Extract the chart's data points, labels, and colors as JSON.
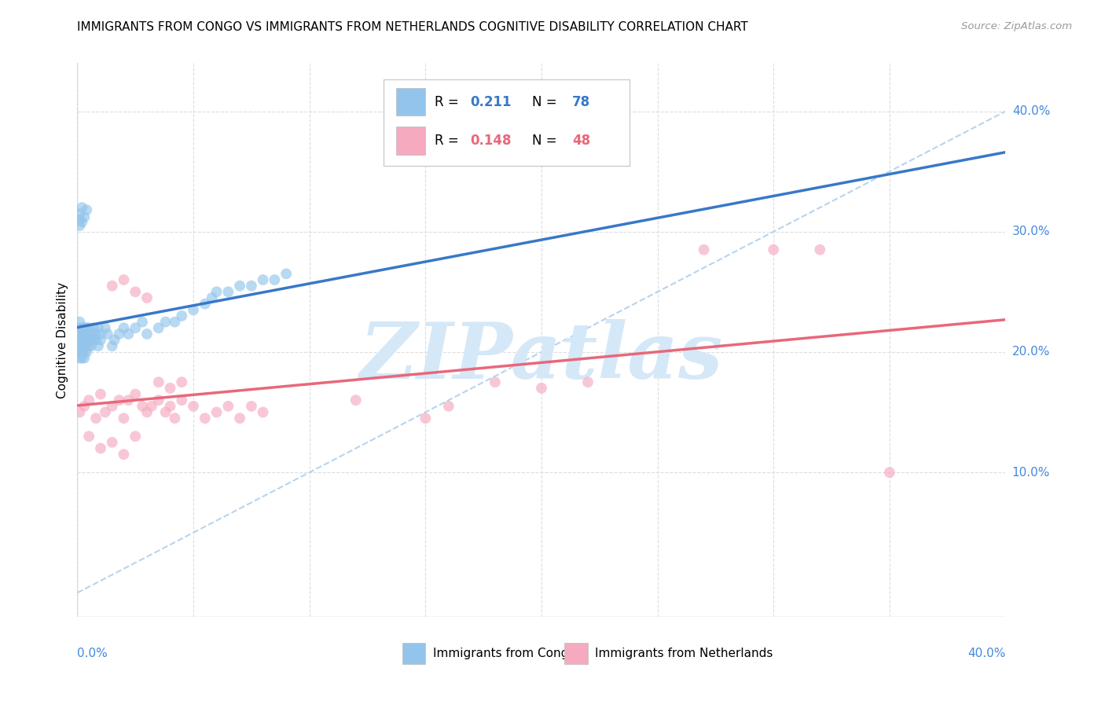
{
  "title": "IMMIGRANTS FROM CONGO VS IMMIGRANTS FROM NETHERLANDS COGNITIVE DISABILITY CORRELATION CHART",
  "source": "Source: ZipAtlas.com",
  "ylabel": "Cognitive Disability",
  "xlim": [
    0.0,
    0.4
  ],
  "ylim": [
    -0.02,
    0.44
  ],
  "ytick_values": [
    0.1,
    0.2,
    0.3,
    0.4
  ],
  "ytick_labels": [
    "10.0%",
    "20.0%",
    "30.0%",
    "40.0%"
  ],
  "xtick_left_label": "0.0%",
  "xtick_right_label": "40.0%",
  "legend_r1": "0.211",
  "legend_n1": "78",
  "legend_r2": "0.148",
  "legend_n2": "48",
  "blue_scatter_color": "#93C5EC",
  "pink_scatter_color": "#F5AABF",
  "blue_line_color": "#3878C8",
  "pink_line_color": "#E8687A",
  "dashed_color": "#B8D4ED",
  "watermark_color": "#D5E8F8",
  "grid_color": "#DDDDDD",
  "congo_x": [
    0.001,
    0.001,
    0.001,
    0.001,
    0.001,
    0.001,
    0.001,
    0.001,
    0.001,
    0.001,
    0.002,
    0.002,
    0.002,
    0.002,
    0.002,
    0.002,
    0.002,
    0.002,
    0.002,
    0.003,
    0.003,
    0.003,
    0.003,
    0.003,
    0.003,
    0.003,
    0.004,
    0.004,
    0.004,
    0.004,
    0.004,
    0.005,
    0.005,
    0.005,
    0.005,
    0.006,
    0.006,
    0.006,
    0.007,
    0.007,
    0.007,
    0.008,
    0.008,
    0.009,
    0.009,
    0.01,
    0.01,
    0.012,
    0.013,
    0.015,
    0.016,
    0.018,
    0.02,
    0.022,
    0.025,
    0.028,
    0.03,
    0.035,
    0.038,
    0.042,
    0.045,
    0.05,
    0.055,
    0.058,
    0.06,
    0.065,
    0.07,
    0.075,
    0.08,
    0.085,
    0.09,
    0.001,
    0.001,
    0.001,
    0.002,
    0.002,
    0.003,
    0.004
  ],
  "congo_y": [
    0.215,
    0.21,
    0.205,
    0.22,
    0.195,
    0.225,
    0.2,
    0.215,
    0.21,
    0.205,
    0.22,
    0.21,
    0.215,
    0.205,
    0.195,
    0.2,
    0.215,
    0.21,
    0.205,
    0.215,
    0.205,
    0.21,
    0.22,
    0.195,
    0.2,
    0.215,
    0.21,
    0.215,
    0.205,
    0.2,
    0.22,
    0.215,
    0.205,
    0.21,
    0.22,
    0.21,
    0.215,
    0.205,
    0.21,
    0.215,
    0.22,
    0.215,
    0.21,
    0.22,
    0.205,
    0.215,
    0.21,
    0.22,
    0.215,
    0.205,
    0.21,
    0.215,
    0.22,
    0.215,
    0.22,
    0.225,
    0.215,
    0.22,
    0.225,
    0.225,
    0.23,
    0.235,
    0.24,
    0.245,
    0.25,
    0.25,
    0.255,
    0.255,
    0.26,
    0.26,
    0.265,
    0.31,
    0.315,
    0.305,
    0.32,
    0.308,
    0.312,
    0.318
  ],
  "netherlands_x": [
    0.001,
    0.003,
    0.005,
    0.008,
    0.01,
    0.012,
    0.015,
    0.018,
    0.02,
    0.022,
    0.025,
    0.028,
    0.03,
    0.032,
    0.035,
    0.038,
    0.04,
    0.042,
    0.045,
    0.05,
    0.055,
    0.06,
    0.065,
    0.07,
    0.075,
    0.08,
    0.015,
    0.02,
    0.025,
    0.03,
    0.035,
    0.04,
    0.045,
    0.12,
    0.15,
    0.16,
    0.18,
    0.2,
    0.22,
    0.27,
    0.3,
    0.32,
    0.35,
    0.005,
    0.01,
    0.015,
    0.02,
    0.025
  ],
  "netherlands_y": [
    0.15,
    0.155,
    0.16,
    0.145,
    0.165,
    0.15,
    0.155,
    0.16,
    0.145,
    0.16,
    0.165,
    0.155,
    0.15,
    0.155,
    0.16,
    0.15,
    0.155,
    0.145,
    0.16,
    0.155,
    0.145,
    0.15,
    0.155,
    0.145,
    0.155,
    0.15,
    0.255,
    0.26,
    0.25,
    0.245,
    0.175,
    0.17,
    0.175,
    0.16,
    0.145,
    0.155,
    0.175,
    0.17,
    0.175,
    0.285,
    0.285,
    0.285,
    0.1,
    0.13,
    0.12,
    0.125,
    0.115,
    0.13
  ]
}
